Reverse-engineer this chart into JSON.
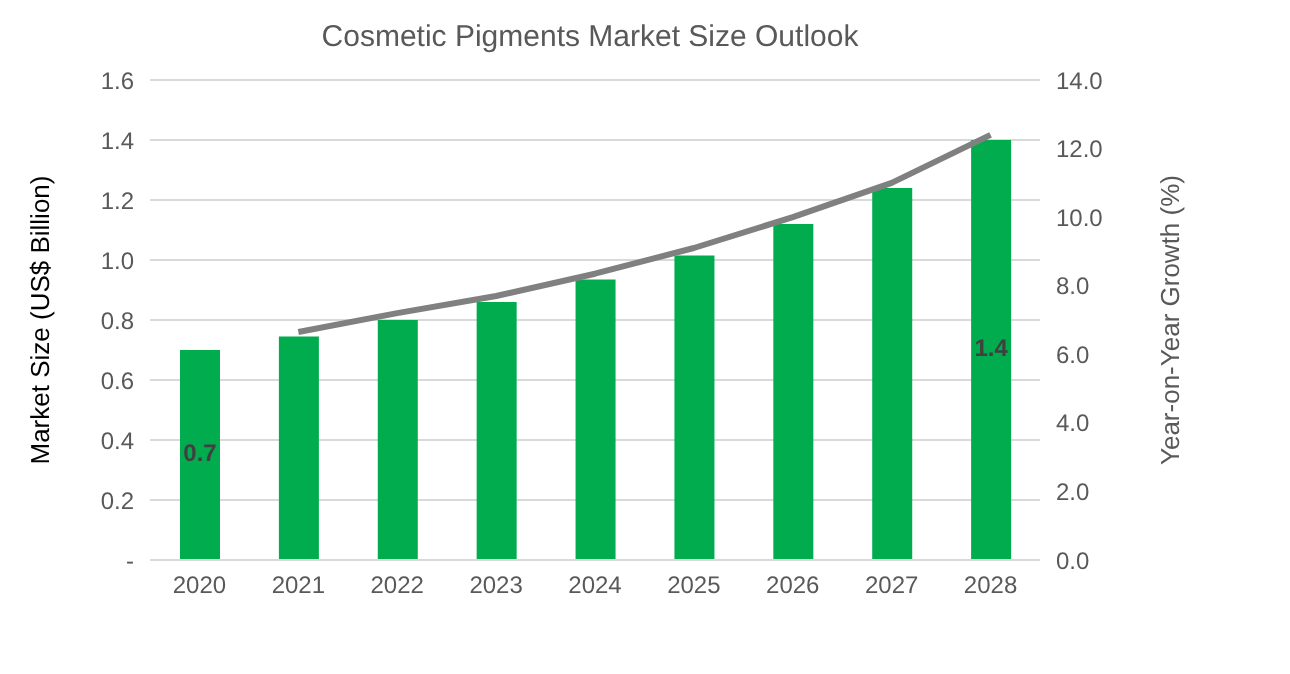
{
  "chart_data": {
    "type": "bar",
    "title": "Cosmetic Pigments Market Size Outlook",
    "ylabel": "Market Size (US$ Billion)",
    "y2label": "Year-on-Year Growth (%)",
    "categories": [
      "2020",
      "2021",
      "2022",
      "2023",
      "2024",
      "2025",
      "2026",
      "2027",
      "2028"
    ],
    "series": [
      {
        "color": "#00ac4e",
        "values": [
          0.7,
          0.745,
          0.8,
          0.86,
          0.935,
          1.015,
          1.12,
          1.24,
          1.4
        ],
        "value_labels": [
          "0.7",
          null,
          null,
          null,
          null,
          null,
          null,
          null,
          "1.4"
        ]
      },
      {
        "type": "line",
        "axis": "y2",
        "color": "#808080",
        "marker": "none",
        "values": [
          null,
          6.65,
          7.2,
          7.7,
          8.35,
          9.1,
          10.0,
          11.0,
          12.4
        ]
      }
    ],
    "ylim": [
      0,
      1.6
    ],
    "yticks": [
      {
        "value": 0,
        "label": "-"
      },
      {
        "value": 0.2,
        "label": "0.2"
      },
      {
        "value": 0.4,
        "label": "0.4"
      },
      {
        "value": 0.6,
        "label": "0.6"
      },
      {
        "value": 0.8,
        "label": "0.8"
      },
      {
        "value": 1.0,
        "label": "1.0"
      },
      {
        "value": 1.2,
        "label": "1.2"
      },
      {
        "value": 1.4,
        "label": "1.4"
      },
      {
        "value": 1.6,
        "label": "1.6"
      }
    ],
    "y2lim": [
      0,
      14
    ],
    "y2ticks": [
      {
        "value": 0,
        "label": "0.0"
      },
      {
        "value": 2,
        "label": "2.0"
      },
      {
        "value": 4,
        "label": "4.0"
      },
      {
        "value": 6,
        "label": "6.0"
      },
      {
        "value": 8,
        "label": "8.0"
      },
      {
        "value": 10,
        "label": "10.0"
      },
      {
        "value": 12,
        "label": "12.0"
      },
      {
        "value": 14,
        "label": "14.0"
      }
    ],
    "grid": "y",
    "legend": false
  }
}
